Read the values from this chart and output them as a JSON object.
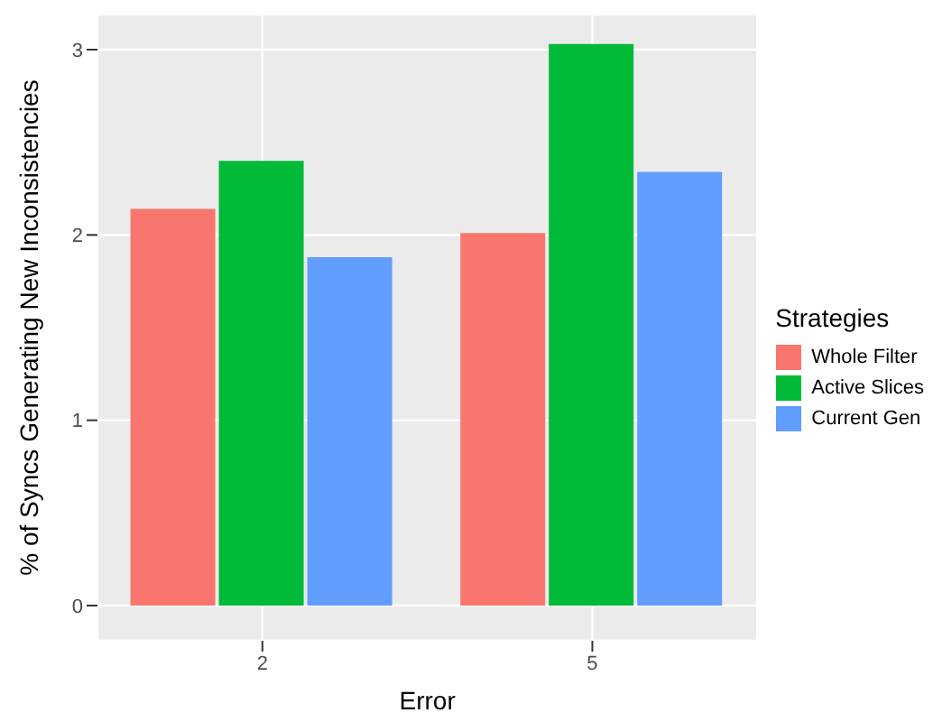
{
  "chart_data": {
    "type": "bar",
    "xlabel": "Error",
    "ylabel": "% of Syncs Generating New Inconsistencies",
    "legend_title": "Strategies",
    "categories": [
      "2",
      "5"
    ],
    "series": [
      {
        "name": "Whole Filter",
        "color": "#f8766d",
        "values": [
          2.14,
          2.01
        ]
      },
      {
        "name": "Active Slices",
        "color": "#00ba38",
        "values": [
          2.4,
          3.03
        ]
      },
      {
        "name": "Current Gen",
        "color": "#619cff",
        "values": [
          1.88,
          2.34
        ]
      }
    ],
    "ylim": [
      -0.19,
      3.19
    ],
    "yticks": [
      0,
      1,
      2,
      3
    ],
    "grid": true,
    "legend": "right"
  }
}
